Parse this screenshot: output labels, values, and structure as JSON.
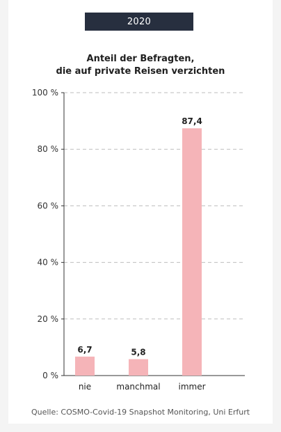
{
  "badge": "2020",
  "title_line1": "Anteil der Befragten,",
  "title_line2": "die auf private Reisen verzichten",
  "source": "Quelle: COSMO-Covid-19 Snapshot Monitoring, Uni Erfurt",
  "colors": {
    "bar": "#f5b4b8",
    "badge_bg": "#272f3f",
    "grid": "#bdbdbd"
  },
  "chart_data": {
    "type": "bar",
    "categories": [
      "nie",
      "manchmal",
      "immer"
    ],
    "values": [
      6.7,
      5.8,
      87.4
    ],
    "value_labels": [
      "6,7",
      "5,8",
      "87,4"
    ],
    "ylim": [
      0,
      100
    ],
    "yticks": [
      0,
      20,
      40,
      60,
      80,
      100
    ],
    "ytick_labels": [
      "0 %",
      "20 %",
      "40 %",
      "60 %",
      "80 %",
      "100 %"
    ],
    "grid": true
  }
}
